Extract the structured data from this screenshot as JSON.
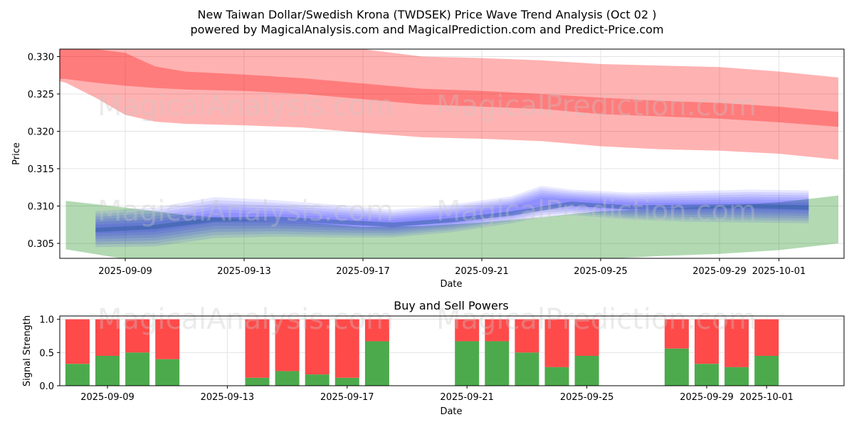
{
  "title_line1": "New Taiwan Dollar/Swedish Krona (TWDSEK) Price Wave Trend Analysis (Oct 02 )",
  "title_line2": "powered by MagicalAnalysis.com and MagicalPrediction.com and Predict-Price.com",
  "watermarks": [
    "MagicalAnalysis.com",
    "MagicalPrediction.com"
  ],
  "colors": {
    "red": "#ff0000",
    "green": "#008000",
    "blue": "#0000ff",
    "darkblue": "#2a5c9a",
    "bar_green": "#4caa4c",
    "bar_red": "#ff4a4a",
    "grid": "#e3e3e3"
  },
  "chart_data": [
    {
      "type": "area",
      "title": "",
      "xlabel": "Date",
      "ylabel": "Price",
      "ylim": [
        0.303,
        0.331
      ],
      "xlim": [
        "2025-09-06",
        "2025-10-04"
      ],
      "yticks": [
        0.305,
        0.31,
        0.315,
        0.32,
        0.325,
        0.33
      ],
      "ytick_labels": [
        "0.305",
        "0.310",
        "0.315",
        "0.320",
        "0.325",
        "0.330"
      ],
      "xticks": [
        "2025-09-09",
        "2025-09-13",
        "2025-09-17",
        "2025-09-21",
        "2025-09-25",
        "2025-09-29",
        "2025-10-01"
      ],
      "grid": true,
      "series": [
        {
          "name": "red-outer-band",
          "color": "red",
          "x": [
            "2025-09-06",
            "2025-09-07",
            "2025-09-08",
            "2025-09-09",
            "2025-09-10",
            "2025-09-11",
            "2025-09-13",
            "2025-09-15",
            "2025-09-17",
            "2025-09-19",
            "2025-09-21",
            "2025-09-23",
            "2025-09-25",
            "2025-09-27",
            "2025-09-29",
            "2025-10-01",
            "2025-10-03"
          ],
          "upper": [
            0.3335,
            0.3335,
            0.332,
            0.331,
            0.331,
            0.331,
            0.331,
            0.3315,
            0.331,
            0.33,
            0.3298,
            0.3295,
            0.329,
            0.3288,
            0.3286,
            0.328,
            0.3272
          ],
          "lower": [
            0.3275,
            0.3265,
            0.3245,
            0.3222,
            0.3213,
            0.321,
            0.3208,
            0.3205,
            0.3198,
            0.3192,
            0.319,
            0.3187,
            0.318,
            0.3176,
            0.3174,
            0.317,
            0.3162
          ]
        },
        {
          "name": "red-inner-band",
          "color": "red",
          "x": [
            "2025-09-06",
            "2025-09-07",
            "2025-09-08",
            "2025-09-09",
            "2025-09-10",
            "2025-09-11",
            "2025-09-13",
            "2025-09-15",
            "2025-09-17",
            "2025-09-19",
            "2025-09-21",
            "2025-09-23",
            "2025-09-25",
            "2025-09-27",
            "2025-09-29",
            "2025-10-01",
            "2025-10-03"
          ],
          "upper": [
            0.3325,
            0.332,
            0.331,
            0.3305,
            0.3287,
            0.328,
            0.3276,
            0.3271,
            0.3264,
            0.3257,
            0.3254,
            0.325,
            0.3245,
            0.3241,
            0.3238,
            0.3233,
            0.3226
          ],
          "lower": [
            0.3272,
            0.327,
            0.3265,
            0.3261,
            0.3258,
            0.3256,
            0.3254,
            0.325,
            0.3243,
            0.3236,
            0.3233,
            0.323,
            0.3223,
            0.322,
            0.3217,
            0.3212,
            0.3206
          ]
        },
        {
          "name": "green-band",
          "color": "green",
          "x": [
            "2025-09-07",
            "2025-09-09",
            "2025-09-11",
            "2025-09-13",
            "2025-09-15",
            "2025-09-17",
            "2025-09-19",
            "2025-09-21",
            "2025-09-23",
            "2025-09-25",
            "2025-09-27",
            "2025-09-29",
            "2025-10-01",
            "2025-10-03"
          ],
          "upper": [
            0.3107,
            0.3098,
            0.3088,
            0.3082,
            0.3078,
            0.3072,
            0.3073,
            0.3078,
            0.3085,
            0.3093,
            0.3096,
            0.31,
            0.3105,
            0.3114
          ],
          "lower": [
            0.3042,
            0.3029,
            0.3023,
            0.3021,
            0.3019,
            0.3017,
            0.3019,
            0.3024,
            0.3028,
            0.3029,
            0.3033,
            0.3036,
            0.3041,
            0.305
          ]
        },
        {
          "name": "blue-wave-envelope",
          "color": "blue",
          "x": [
            "2025-09-08",
            "2025-09-10",
            "2025-09-12",
            "2025-09-14",
            "2025-09-16",
            "2025-09-18",
            "2025-09-20",
            "2025-09-22",
            "2025-09-23",
            "2025-09-24",
            "2025-09-26",
            "2025-09-28",
            "2025-09-30",
            "2025-10-02"
          ],
          "upper": [
            0.3093,
            0.3098,
            0.3112,
            0.3108,
            0.3102,
            0.3095,
            0.3102,
            0.3113,
            0.3127,
            0.3122,
            0.3118,
            0.312,
            0.3122,
            0.3121
          ],
          "lower": [
            0.3045,
            0.3046,
            0.3057,
            0.3059,
            0.3058,
            0.3058,
            0.3065,
            0.3077,
            0.3085,
            0.3088,
            0.3082,
            0.3079,
            0.3078,
            0.3077
          ]
        },
        {
          "name": "blue-center-line",
          "color": "darkblue",
          "x": [
            "2025-09-08",
            "2025-09-10",
            "2025-09-12",
            "2025-09-14",
            "2025-09-16",
            "2025-09-18",
            "2025-09-20",
            "2025-09-22",
            "2025-09-24",
            "2025-09-26",
            "2025-09-28",
            "2025-09-30",
            "2025-10-02"
          ],
          "values": [
            0.3068,
            0.3072,
            0.3082,
            0.3083,
            0.3079,
            0.3075,
            0.3081,
            0.309,
            0.3103,
            0.3098,
            0.3099,
            0.31,
            0.3098
          ]
        }
      ]
    },
    {
      "type": "bar",
      "title": "Buy and Sell Powers",
      "xlabel": "Date",
      "ylabel": "Signal Strength",
      "ylim": [
        0,
        1.05
      ],
      "yticks": [
        0.0,
        0.5,
        1.0
      ],
      "ytick_labels": [
        "0.0",
        "0.5",
        "1.0"
      ],
      "xticks": [
        "2025-09-09",
        "2025-09-13",
        "2025-09-17",
        "2025-09-21",
        "2025-09-25",
        "2025-09-29",
        "2025-10-01"
      ],
      "grid": true,
      "categories": [
        "2025-09-08",
        "2025-09-09",
        "2025-09-10",
        "2025-09-11",
        "2025-09-14",
        "2025-09-15",
        "2025-09-16",
        "2025-09-17",
        "2025-09-18",
        "2025-09-21",
        "2025-09-22",
        "2025-09-23",
        "2025-09-24",
        "2025-09-25",
        "2025-09-28",
        "2025-09-29",
        "2025-09-30",
        "2025-10-01"
      ],
      "series": [
        {
          "name": "Buy",
          "color": "bar_green",
          "values": [
            0.33,
            0.45,
            0.5,
            0.4,
            0.12,
            0.22,
            0.17,
            0.12,
            0.67,
            0.67,
            0.67,
            0.5,
            0.28,
            0.45,
            0.56,
            0.33,
            0.28,
            0.45
          ]
        },
        {
          "name": "Sell",
          "color": "bar_red",
          "values": [
            0.67,
            0.55,
            0.5,
            0.6,
            0.88,
            0.78,
            0.83,
            0.88,
            0.33,
            0.33,
            0.33,
            0.5,
            0.72,
            0.55,
            0.44,
            0.67,
            0.72,
            0.55
          ]
        }
      ]
    }
  ]
}
